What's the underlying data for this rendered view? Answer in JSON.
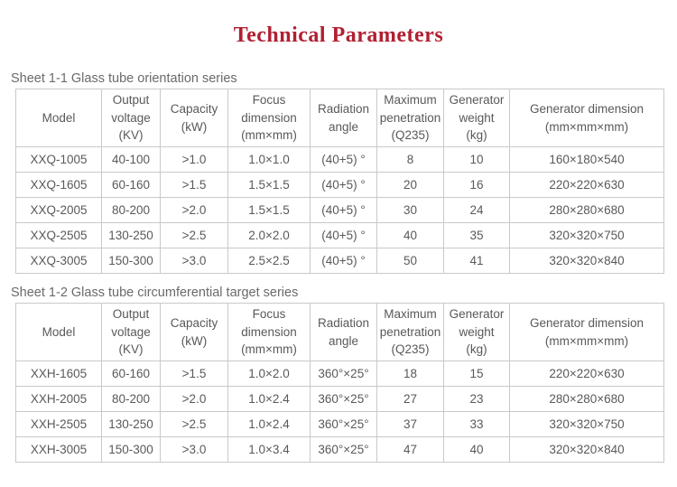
{
  "page": {
    "title": "Technical Parameters"
  },
  "colors": {
    "title_accent": "#b11f31",
    "table_text": "#58595b",
    "table_border": "#c9c9c9"
  },
  "tables": [
    {
      "caption": "Sheet 1-1 Glass tube orientation series",
      "headers": [
        "Model",
        "Output\nvoltage\n(KV)",
        "Capacity\n(kW)",
        "Focus\ndimension\n(mm×mm)",
        "Radiation\nangle",
        "Maximum\npenetration\n(Q235)",
        "Generator\nweight\n(kg)",
        "Generator dimension\n(mm×mm×mm)"
      ],
      "rows": [
        [
          "XXQ-1005",
          "40-100",
          ">1.0",
          "1.0×1.0",
          "(40+5) °",
          "8",
          "10",
          "160×180×540"
        ],
        [
          "XXQ-1605",
          "60-160",
          ">1.5",
          "1.5×1.5",
          "(40+5) °",
          "20",
          "16",
          "220×220×630"
        ],
        [
          "XXQ-2005",
          "80-200",
          ">2.0",
          "1.5×1.5",
          "(40+5) °",
          "30",
          "24",
          "280×280×680"
        ],
        [
          "XXQ-2505",
          "130-250",
          ">2.5",
          "2.0×2.0",
          "(40+5) °",
          "40",
          "35",
          "320×320×750"
        ],
        [
          "XXQ-3005",
          "150-300",
          ">3.0",
          "2.5×2.5",
          "(40+5) °",
          "50",
          "41",
          "320×320×840"
        ]
      ]
    },
    {
      "caption": "Sheet 1-2 Glass tube circumferential target series",
      "headers": [
        "Model",
        "Output\nvoltage\n(KV)",
        "Capacity\n(kW)",
        "Focus\ndimension\n(mm×mm)",
        "Radiation\nangle",
        "Maximum\npenetration\n(Q235)",
        "Generator\nweight\n(kg)",
        "Generator dimension\n(mm×mm×mm)"
      ],
      "rows": [
        [
          "XXH-1605",
          "60-160",
          ">1.5",
          "1.0×2.0",
          "360°×25°",
          "18",
          "15",
          "220×220×630"
        ],
        [
          "XXH-2005",
          "80-200",
          ">2.0",
          "1.0×2.4",
          "360°×25°",
          "27",
          "23",
          "280×280×680"
        ],
        [
          "XXH-2505",
          "130-250",
          ">2.5",
          "1.0×2.4",
          "360°×25°",
          "37",
          "33",
          "320×320×750"
        ],
        [
          "XXH-3005",
          "150-300",
          ">3.0",
          "1.0×3.4",
          "360°×25°",
          "47",
          "40",
          "320×320×840"
        ]
      ]
    }
  ]
}
